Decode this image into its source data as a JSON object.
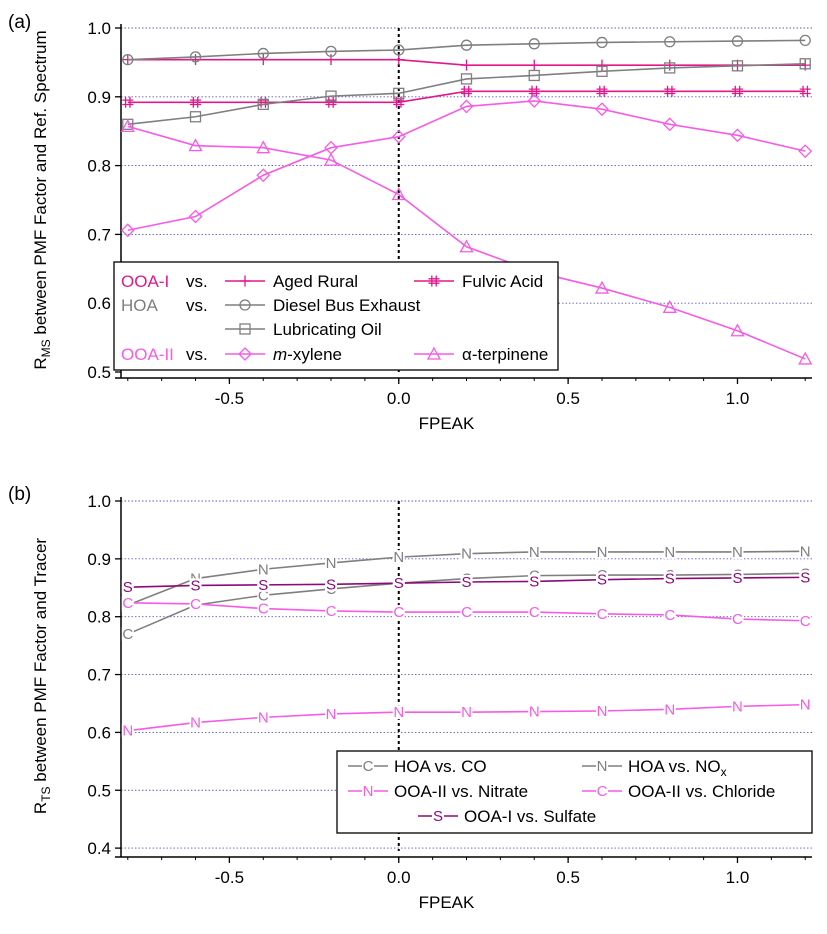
{
  "colors": {
    "magenta": "#e0188c",
    "gray": "#7f7f7f",
    "pink": "#f75ae6",
    "purple": "#8c0a78",
    "grid": "#5a5ad2"
  },
  "chart_data": [
    {
      "panel_label": "(a)",
      "type": "line",
      "ylabel_main": "R",
      "ylabel_sub": "MS",
      "ylabel_rest": " between PMF Factor and Ref. Spectrum",
      "xlabel": "FPEAK",
      "xlim": [
        -0.82,
        1.22
      ],
      "ylim": [
        0.5,
        1.0
      ],
      "xticks": [
        -0.5,
        0.0,
        0.5,
        1.0
      ],
      "xtick_labels": [
        "-0.5",
        "0.0",
        "0.5",
        "1.0"
      ],
      "yticks": [
        0.5,
        0.6,
        0.7,
        0.8,
        0.9,
        1.0
      ],
      "ytick_labels": [
        "0.5",
        "0.6",
        "0.7",
        "0.8",
        "0.9",
        "1.0"
      ],
      "grid": "horizontal dotted",
      "reference_line_x": 0.0,
      "legend": {
        "position": "bottom-left",
        "rows": [
          {
            "group": "OOA-I",
            "group_color": "magenta",
            "vs": "vs.",
            "entries": [
              0,
              1
            ]
          },
          {
            "group": "HOA",
            "group_color": "gray",
            "vs": "vs.",
            "entries": [
              2
            ]
          },
          {
            "group": "",
            "group_color": "gray",
            "vs": "",
            "entries": [
              3
            ]
          },
          {
            "group": "OOA-II",
            "group_color": "pink",
            "vs": "vs.",
            "entries": [
              4,
              5
            ]
          }
        ]
      },
      "x": [
        -0.8,
        -0.6,
        -0.4,
        -0.2,
        0.0,
        0.2,
        0.4,
        0.6,
        0.8,
        1.0,
        1.2
      ],
      "series": [
        {
          "name": "Aged Rural",
          "marker": "plus",
          "color": "magenta",
          "values": [
            0.954,
            0.954,
            0.954,
            0.954,
            0.954,
            0.946,
            0.946,
            0.946,
            0.946,
            0.946,
            0.946
          ]
        },
        {
          "name": "Fulvic Acid",
          "marker": "hash",
          "color": "magenta",
          "values": [
            0.892,
            0.892,
            0.892,
            0.892,
            0.892,
            0.908,
            0.908,
            0.908,
            0.908,
            0.908,
            0.908
          ]
        },
        {
          "name": "Diesel Bus Exhaust",
          "marker": "circle",
          "color": "gray",
          "values": [
            0.954,
            0.958,
            0.963,
            0.966,
            0.968,
            0.975,
            0.977,
            0.979,
            0.98,
            0.981,
            0.982
          ]
        },
        {
          "name": "Lubricating Oil",
          "marker": "square",
          "color": "gray",
          "values": [
            0.86,
            0.871,
            0.889,
            0.901,
            0.905,
            0.926,
            0.931,
            0.937,
            0.942,
            0.945,
            0.948
          ]
        },
        {
          "name": "m-xylene",
          "name_italic_part": "m",
          "name_rest": "-xylene",
          "marker": "diamond",
          "color": "pink",
          "values": [
            0.706,
            0.726,
            0.786,
            0.826,
            0.842,
            0.886,
            0.894,
            0.882,
            0.86,
            0.844,
            0.821
          ]
        },
        {
          "name": "α-terpinene",
          "marker": "triangle",
          "color": "pink",
          "values": [
            0.857,
            0.829,
            0.826,
            0.808,
            0.758,
            0.682,
            0.646,
            0.622,
            0.594,
            0.56,
            0.519
          ]
        }
      ]
    },
    {
      "panel_label": "(b)",
      "type": "line",
      "ylabel_main": "R",
      "ylabel_sub": "TS",
      "ylabel_rest": " between PMF Factor and Tracer",
      "xlabel": "FPEAK",
      "xlim": [
        -0.82,
        1.22
      ],
      "ylim": [
        0.395,
        1.0
      ],
      "xticks": [
        -0.5,
        0.0,
        0.5,
        1.0
      ],
      "xtick_labels": [
        "-0.5",
        "0.0",
        "0.5",
        "1.0"
      ],
      "yticks": [
        0.4,
        0.5,
        0.6,
        0.7,
        0.8,
        0.9,
        1.0
      ],
      "ytick_labels": [
        "0.4",
        "0.5",
        "0.6",
        "0.7",
        "0.8",
        "0.9",
        "1.0"
      ],
      "grid": "horizontal dotted",
      "reference_line_x": 0.0,
      "legend": {
        "position": "bottom-right",
        "rows": [
          [
            0,
            1
          ],
          [
            2,
            3
          ],
          [
            4
          ]
        ]
      },
      "x": [
        -0.8,
        -0.6,
        -0.4,
        -0.2,
        0.0,
        0.2,
        0.4,
        0.6,
        0.8,
        1.0,
        1.2
      ],
      "series": [
        {
          "name": "HOA vs. CO",
          "marker": "C",
          "color": "gray",
          "values": [
            0.77,
            0.82,
            0.837,
            0.848,
            0.858,
            0.866,
            0.871,
            0.872,
            0.872,
            0.873,
            0.875
          ]
        },
        {
          "name": "HOA vs. NOx",
          "name_main": "HOA vs. NO",
          "name_sub": "x",
          "marker": "N",
          "color": "gray",
          "values": [
            0.82,
            0.866,
            0.882,
            0.893,
            0.903,
            0.909,
            0.912,
            0.912,
            0.912,
            0.912,
            0.913
          ]
        },
        {
          "name": "OOA-II vs. Nitrate",
          "marker": "N",
          "color": "pink",
          "values": [
            0.603,
            0.617,
            0.626,
            0.632,
            0.635,
            0.635,
            0.636,
            0.637,
            0.64,
            0.645,
            0.648
          ]
        },
        {
          "name": "OOA-II vs. Chloride",
          "marker": "C",
          "color": "pink",
          "values": [
            0.824,
            0.822,
            0.814,
            0.81,
            0.808,
            0.808,
            0.808,
            0.805,
            0.803,
            0.796,
            0.793
          ]
        },
        {
          "name": "OOA-I vs. Sulfate",
          "marker": "S",
          "color": "purple",
          "values": [
            0.851,
            0.854,
            0.855,
            0.856,
            0.858,
            0.86,
            0.861,
            0.864,
            0.866,
            0.867,
            0.868
          ]
        }
      ]
    }
  ]
}
